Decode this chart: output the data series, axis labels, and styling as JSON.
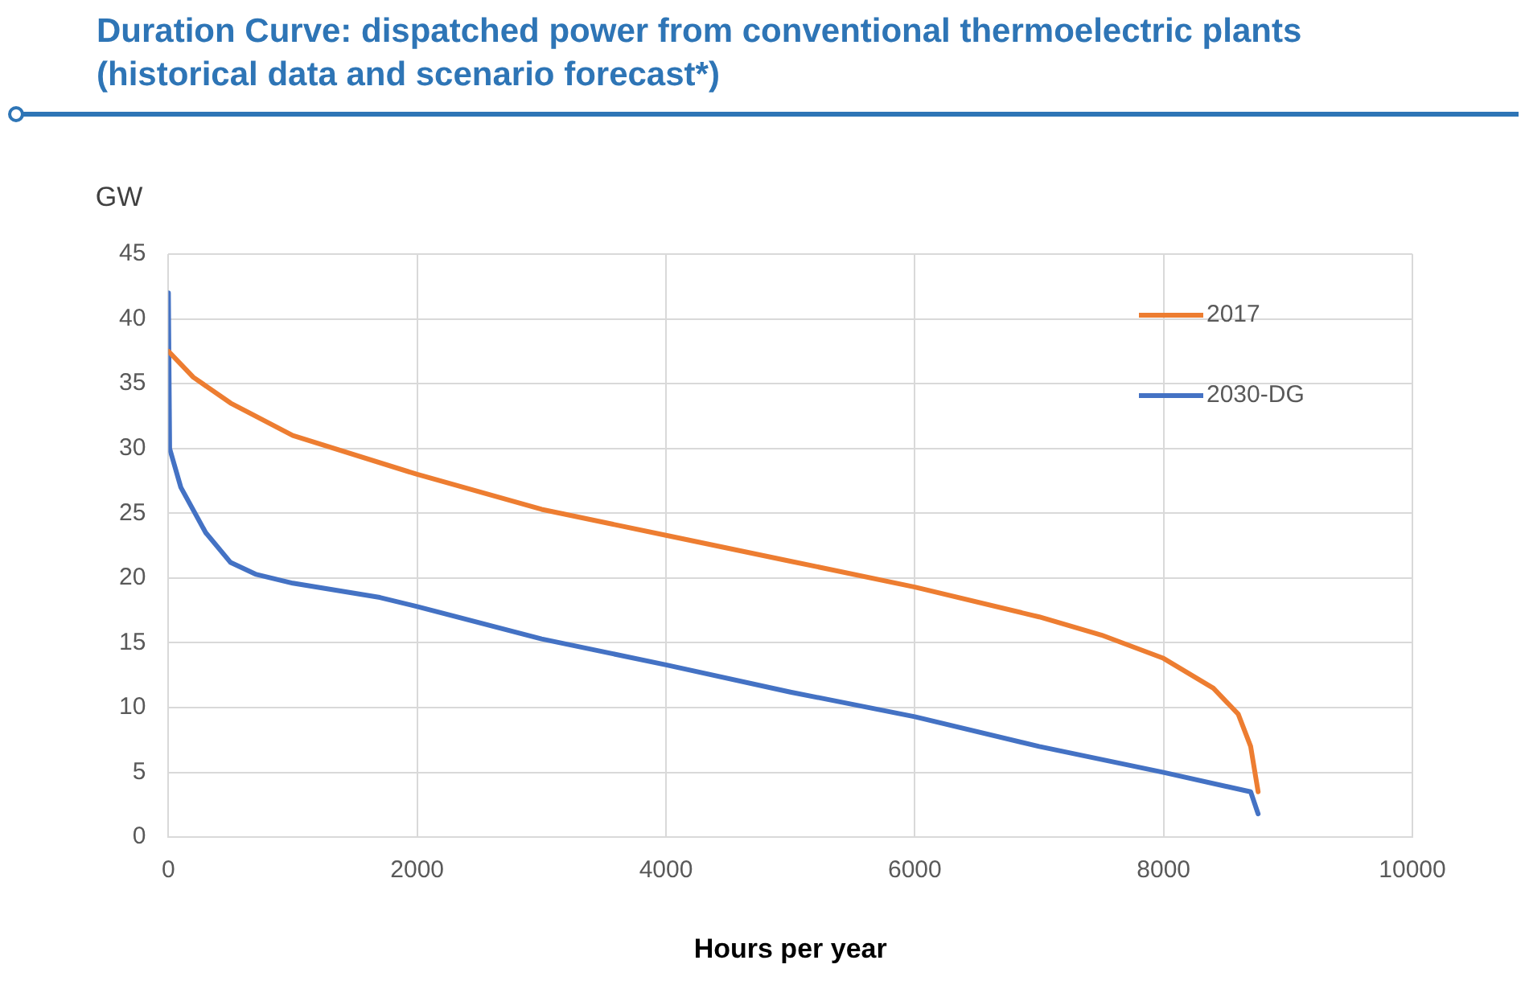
{
  "chart_data": {
    "type": "line",
    "title": "Duration Curve: dispatched power from conventional thermoelectric plants (historical data and scenario forecast*)",
    "xlabel": "Hours per year",
    "ylabel": "GW",
    "xlim": [
      0,
      10000
    ],
    "xticks": [
      0,
      2000,
      4000,
      6000,
      8000,
      10000
    ],
    "ylim": [
      0,
      45
    ],
    "yticks": [
      0,
      5,
      10,
      15,
      20,
      25,
      30,
      35,
      40,
      45
    ],
    "grid": true,
    "legend": "top right",
    "marker": "none",
    "line_style": "solid",
    "series": [
      {
        "name": "2017",
        "color": "#ed7d31",
        "x": [
          0,
          200,
          500,
          1000,
          2000,
          3000,
          4000,
          5000,
          6000,
          7000,
          7500,
          8000,
          8400,
          8600,
          8700,
          8760
        ],
        "values": [
          37.5,
          35.5,
          33.5,
          31,
          28,
          25.3,
          23.3,
          21.3,
          19.3,
          17,
          15.6,
          13.8,
          11.5,
          9.5,
          7,
          3.5
        ]
      },
      {
        "name": "2030-DG",
        "color": "#4472c4",
        "x": [
          0,
          10,
          100,
          300,
          500,
          700,
          1000,
          1700,
          2000,
          3000,
          4000,
          5000,
          6000,
          7000,
          8000,
          8700,
          8760
        ],
        "values": [
          42,
          30,
          27,
          23.5,
          21.2,
          20.3,
          19.6,
          18.5,
          17.8,
          15.3,
          13.3,
          11.2,
          9.3,
          7,
          5,
          3.5,
          1.8
        ]
      }
    ]
  }
}
